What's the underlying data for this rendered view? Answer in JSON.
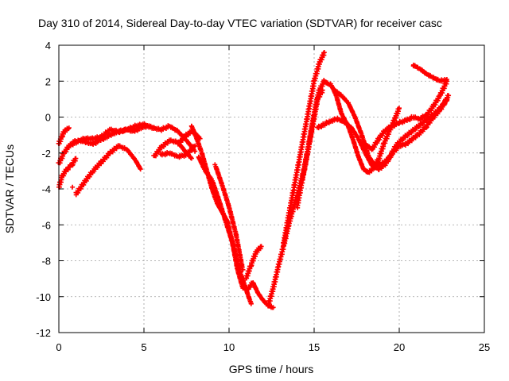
{
  "chart_data": {
    "type": "scatter",
    "title": "Day 310 of 2014, Sidereal Day-to-day VTEC variation (SDTVAR) for receiver casc",
    "xlabel": "GPS time / hours",
    "ylabel": "SDTVAR / TECUs",
    "xlim": [
      0,
      25
    ],
    "ylim": [
      -12,
      4
    ],
    "xticks": [
      0,
      5,
      10,
      15,
      20,
      25
    ],
    "yticks": [
      -12,
      -10,
      -8,
      -6,
      -4,
      -2,
      0,
      2,
      4
    ],
    "grid": true,
    "marker": "plus",
    "color": "#ff0000",
    "series": [
      {
        "x": [
          0.0,
          0.3,
          0.6,
          1.0,
          1.5,
          2.0,
          2.5,
          3.0,
          3.5,
          4.0,
          4.5,
          5.0,
          5.5,
          6.0,
          6.5,
          7.0,
          7.5,
          8.0
        ],
        "y": [
          -2.6,
          -2.0,
          -1.6,
          -1.4,
          -1.2,
          -1.2,
          -1.1,
          -0.7,
          -0.8,
          -0.7,
          -0.5,
          -0.4,
          -0.6,
          -0.7,
          -0.5,
          -0.8,
          -1.3,
          -1.9
        ]
      },
      {
        "x": [
          0.0,
          0.2,
          0.4,
          0.6
        ],
        "y": [
          -1.5,
          -1.0,
          -0.7,
          -0.6
        ]
      },
      {
        "x": [
          0.0,
          0.2,
          0.4,
          0.6,
          0.8,
          1.0
        ],
        "y": [
          -3.9,
          -3.3,
          -3.0,
          -2.8,
          -2.6,
          -2.3
        ]
      },
      {
        "x": [
          1.0,
          1.3,
          1.6,
          2.0,
          2.5,
          3.0,
          3.5,
          4.0,
          4.5,
          4.8
        ],
        "y": [
          -4.3,
          -3.9,
          -3.5,
          -3.0,
          -2.5,
          -2.0,
          -1.6,
          -1.8,
          -2.4,
          -2.9
        ]
      },
      {
        "x": [
          0.8,
          1.2,
          1.6,
          2.0,
          2.4,
          2.8,
          3.2,
          3.6,
          4.0,
          4.4,
          4.8,
          5.2,
          5.6
        ],
        "y": [
          -1.4,
          -1.3,
          -1.4,
          -1.5,
          -1.3,
          -1.1,
          -0.9,
          -0.8,
          -0.7,
          -0.8,
          -0.6,
          -0.5,
          -0.6
        ]
      },
      {
        "x": [
          5.6,
          6.0,
          6.5,
          7.0,
          7.5,
          7.8
        ],
        "y": [
          -2.2,
          -1.7,
          -1.3,
          -1.4,
          -2.0,
          -2.3
        ]
      },
      {
        "x": [
          6.0,
          6.5,
          7.0,
          7.5,
          8.0
        ],
        "y": [
          -2.1,
          -2.0,
          -2.2,
          -2.1,
          -1.6
        ]
      },
      {
        "x": [
          7.0,
          7.5,
          7.8,
          8.0,
          8.3
        ],
        "y": [
          -1.5,
          -1.0,
          -0.8,
          -0.9,
          -1.2
        ]
      },
      {
        "x": [
          7.8,
          8.1,
          8.4,
          8.7,
          9.0,
          9.3,
          9.6,
          9.9,
          10.2,
          10.5,
          10.8,
          11.1,
          11.4,
          11.7,
          12.0,
          12.3,
          12.6
        ],
        "y": [
          -0.5,
          -1.2,
          -2.0,
          -3.0,
          -4.0,
          -4.8,
          -5.3,
          -5.8,
          -7.0,
          -8.5,
          -9.5,
          -9.6,
          -9.2,
          -9.8,
          -10.2,
          -10.5,
          -10.6
        ]
      },
      {
        "x": [
          8.2,
          8.6,
          9.0,
          9.4,
          9.8,
          10.2,
          10.6,
          11.0,
          11.3
        ],
        "y": [
          -2.2,
          -3.0,
          -3.5,
          -4.6,
          -5.8,
          -7.0,
          -8.5,
          -9.6,
          -10.4
        ]
      },
      {
        "x": [
          9.2,
          9.6,
          10.0,
          10.4,
          10.8
        ],
        "y": [
          -2.7,
          -3.8,
          -5.0,
          -6.5,
          -8.5
        ]
      },
      {
        "x": [
          11.0,
          11.3,
          11.6,
          11.9
        ],
        "y": [
          -9.0,
          -8.2,
          -7.5,
          -7.2
        ]
      },
      {
        "x": [
          12.3,
          12.6,
          12.9,
          13.2,
          13.5,
          13.8,
          14.1,
          14.4,
          14.7,
          15.0,
          15.3,
          15.6,
          15.9
        ],
        "y": [
          -10.5,
          -9.5,
          -8.3,
          -7.2,
          -6.0,
          -5.0,
          -4.0,
          -3.0,
          -1.5,
          0.2,
          1.5,
          2.0,
          1.8
        ]
      },
      {
        "x": [
          13.2,
          13.5,
          13.8,
          14.1,
          14.4,
          14.7,
          15.0,
          15.3,
          15.6
        ],
        "y": [
          -7.1,
          -5.5,
          -4.0,
          -2.5,
          -1.0,
          0.5,
          2.0,
          3.0,
          3.6
        ]
      },
      {
        "x": [
          14.0,
          14.3,
          14.6,
          14.9,
          15.2,
          15.5
        ],
        "y": [
          -5.0,
          -3.5,
          -2.0,
          -0.5,
          1.0,
          1.5
        ]
      },
      {
        "x": [
          16.0,
          16.3,
          16.6,
          17.0,
          17.3,
          17.6,
          17.9,
          18.2,
          18.5,
          18.8,
          19.1,
          19.4,
          19.7,
          20.0
        ],
        "y": [
          1.8,
          1.2,
          0.2,
          -0.5,
          -1.3,
          -2.2,
          -2.9,
          -3.1,
          -2.8,
          -2.3,
          -1.5,
          -0.8,
          -0.2,
          0.5
        ]
      },
      {
        "x": [
          15.2,
          15.6,
          16.0,
          16.4,
          16.8,
          17.2,
          17.6,
          18.0,
          18.4,
          18.8,
          19.2,
          19.6,
          20.0,
          20.4,
          20.8,
          21.2,
          21.6,
          22.0,
          22.4,
          22.8
        ],
        "y": [
          -0.6,
          -0.4,
          -0.2,
          -0.1,
          -0.3,
          -0.6,
          -1.2,
          -2.0,
          -2.7,
          -2.9,
          -2.6,
          -2.0,
          -1.6,
          -1.5,
          -1.2,
          -0.9,
          -0.5,
          0.0,
          0.4,
          1.0
        ]
      },
      {
        "x": [
          16.2,
          16.6,
          17.0,
          17.4,
          17.8,
          18.2,
          18.6,
          19.0,
          19.4,
          19.8,
          20.2,
          20.6,
          21.0,
          21.4,
          21.8,
          22.2,
          22.6,
          22.9
        ],
        "y": [
          1.5,
          1.2,
          0.8,
          0.0,
          -1.0,
          -2.2,
          -2.7,
          -2.6,
          -2.3,
          -1.6,
          -1.2,
          -0.9,
          -0.6,
          -0.3,
          0.0,
          0.3,
          0.7,
          1.2
        ]
      },
      {
        "x": [
          18.0,
          18.4,
          18.8,
          19.2,
          19.6,
          20.0,
          20.4,
          20.8,
          21.2,
          21.6,
          22.0,
          22.4,
          22.8
        ],
        "y": [
          -1.5,
          -1.8,
          -1.2,
          -0.7,
          -0.5,
          -0.3,
          -0.2,
          0.0,
          -0.1,
          0.1,
          0.6,
          1.2,
          2.0
        ]
      },
      {
        "x": [
          20.8,
          21.2,
          21.6,
          22.0,
          22.4,
          22.8
        ],
        "y": [
          2.9,
          2.7,
          2.4,
          2.2,
          2.0,
          2.1
        ]
      },
      {
        "x": [
          0.8
        ],
        "y": [
          -3.9
        ]
      }
    ]
  }
}
